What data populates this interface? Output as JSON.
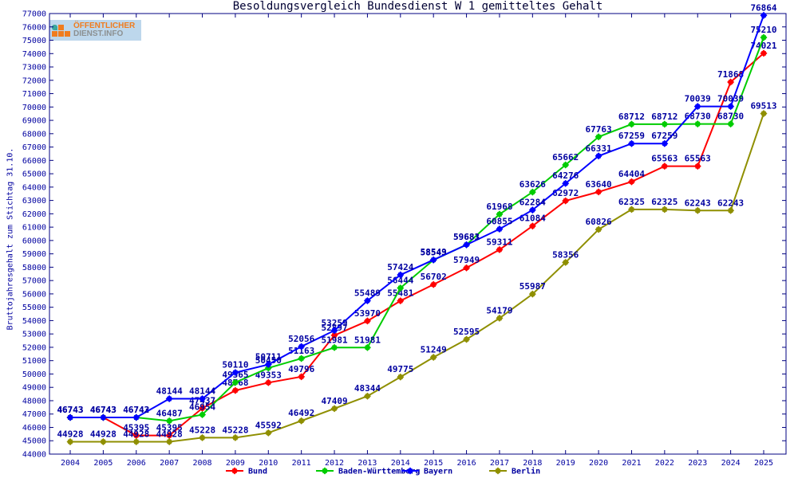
{
  "logo": {
    "line1": "ÖFFENTLICHER",
    "line2": "DIENST.INFO"
  },
  "chart_data": {
    "type": "line",
    "title": "Besoldungsvergleich Bundesdienst W 1 gemitteltes Gehalt",
    "xlabel": "",
    "ylabel": "Bruttojahresgehalt zum Stichtag 31.10.",
    "ylim": [
      44000,
      77000
    ],
    "ytick_step": 1000,
    "grid": false,
    "legend_position": "bottom",
    "point_labels": true,
    "categories": [
      "2004",
      "2005",
      "2006",
      "2007",
      "2008",
      "2009",
      "2010",
      "2011",
      "2012",
      "2013",
      "2014",
      "2015",
      "2016",
      "2017",
      "2018",
      "2019",
      "2020",
      "2021",
      "2022",
      "2023",
      "2024",
      "2025"
    ],
    "series": [
      {
        "name": "Bund",
        "color": "#ff0000",
        "values": [
          46743,
          46743,
          45395,
          45395,
          47437,
          48768,
          49353,
          49796,
          52897,
          53970,
          55481,
          56702,
          57949,
          59311,
          61084,
          62972,
          63640,
          64404,
          65563,
          65563,
          71868,
          74021
        ]
      },
      {
        "name": "Baden-Württemberg",
        "color": "#00cc00",
        "values": [
          46743,
          46743,
          46743,
          46487,
          46954,
          49365,
          50450,
          51163,
          51981,
          51981,
          56444,
          58543,
          59683,
          61968,
          63626,
          65662,
          67763,
          68712,
          68712,
          68730,
          68730,
          75210
        ]
      },
      {
        "name": "Bayern",
        "color": "#0000ff",
        "values": [
          46743,
          46743,
          46742,
          48144,
          48144,
          50110,
          50711,
          52056,
          53259,
          55489,
          57424,
          58549,
          59681,
          60855,
          62284,
          64276,
          66331,
          67259,
          67259,
          70039,
          70039,
          76864
        ]
      },
      {
        "name": "Berlin",
        "color": "#8f8f00",
        "values": [
          44928,
          44928,
          44928,
          44928,
          45228,
          45228,
          45592,
          46492,
          47409,
          48344,
          49775,
          51249,
          52595,
          54179,
          55987,
          58356,
          60826,
          62325,
          62325,
          62243,
          62243,
          69513
        ]
      }
    ]
  },
  "colors": {
    "border": "#000080",
    "tick_text": "#0000a0",
    "title_text": "#000033",
    "logo_bg": "#bdd7ec",
    "logo_orange": "#f07c1e",
    "logo_gray": "#8c9091",
    "logo_teal": "#3aa79b"
  }
}
